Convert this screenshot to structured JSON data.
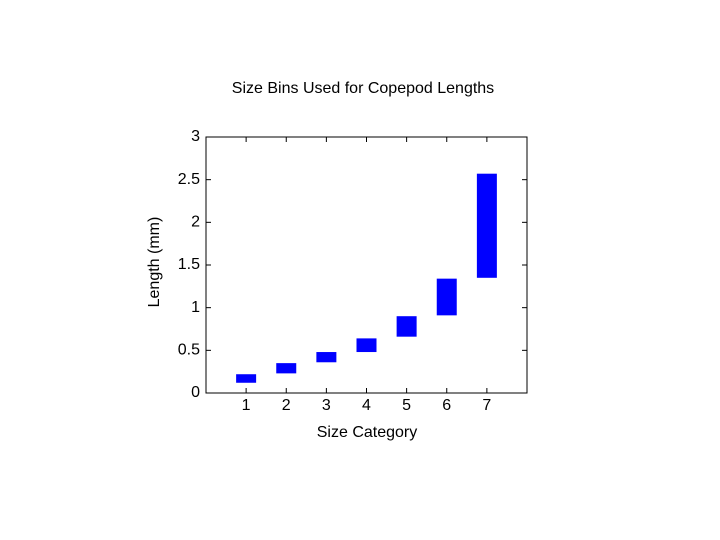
{
  "chart_data": {
    "type": "floating-bar",
    "title": "Size Bins Used for Copepod Lengths",
    "x_label": "Size Category",
    "y_label": "Length (mm)",
    "x": [
      1,
      2,
      3,
      4,
      5,
      6,
      7
    ],
    "low": [
      0.12,
      0.23,
      0.36,
      0.48,
      0.66,
      0.91,
      1.35
    ],
    "high": [
      0.22,
      0.35,
      0.48,
      0.64,
      0.9,
      1.34,
      2.57
    ],
    "color": "#0000ff",
    "xlim": [
      0,
      8
    ],
    "xticks": [
      1,
      2,
      3,
      4,
      5,
      6,
      7
    ],
    "ylim": [
      0,
      3
    ],
    "yticks": [
      0,
      0.5,
      1,
      1.5,
      2,
      2.5,
      3
    ],
    "grid": false
  }
}
